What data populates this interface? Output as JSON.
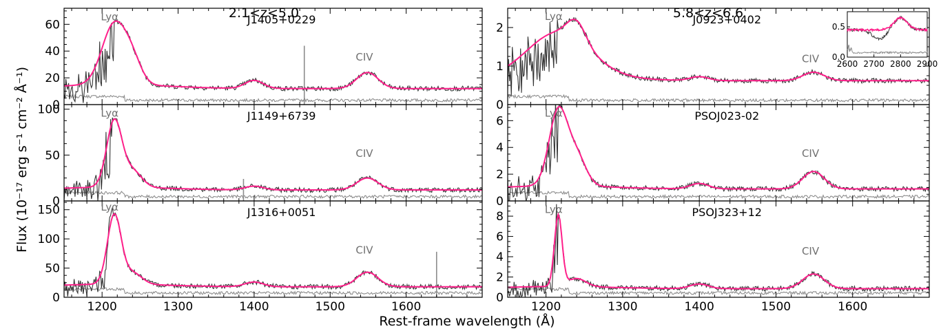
{
  "figure": {
    "ylabel": "Flux (10⁻¹⁷ erg s⁻¹ cm⁻² Å⁻¹)",
    "xlabel": "Rest-frame  wavelength (Å)",
    "columns": [
      "2.1<z<5.0",
      "5.8<z<6.6"
    ]
  },
  "colors": {
    "model": "#ff1f8a",
    "spectrum": "#333333",
    "error": "#8c8c8c",
    "line_label": "#707070"
  },
  "chart_data": [
    {
      "type": "line",
      "panel": "left-1",
      "title": "J1405+0229",
      "xlim": [
        1150,
        1700
      ],
      "ylim": [
        0,
        72
      ],
      "xticks": [
        1200,
        1300,
        1400,
        1500,
        1600
      ],
      "yticks": [
        0,
        20,
        40,
        60
      ],
      "labels": [
        {
          "text": "Lyα",
          "x": 1210,
          "y": 63
        },
        {
          "text": "CIV",
          "x": 1545,
          "y": 33
        }
      ],
      "model_shape": {
        "cont": 12,
        "lya": 45,
        "lya_w": 16,
        "nv": 15,
        "civ": 12,
        "siiv": 6
      },
      "spikes": [
        {
          "x": 1466,
          "y": 44
        }
      ]
    },
    {
      "type": "line",
      "panel": "left-2",
      "title": "J1149+6739",
      "xlim": [
        1150,
        1700
      ],
      "ylim": [
        0,
        105
      ],
      "xticks": [
        1200,
        1300,
        1400,
        1500,
        1600
      ],
      "yticks": [
        0,
        50,
        100
      ],
      "labels": [
        {
          "text": "Lyα",
          "x": 1210,
          "y": 92
        },
        {
          "text": "CIV",
          "x": 1545,
          "y": 48
        }
      ],
      "model_shape": {
        "cont": 12,
        "lya": 72,
        "lya_w": 10,
        "nv": 18,
        "civ": 13,
        "siiv": 4
      },
      "spikes": [
        {
          "x": 1386,
          "y": 24
        }
      ]
    },
    {
      "type": "line",
      "panel": "left-3",
      "title": "J1316+0051",
      "xlim": [
        1150,
        1700
      ],
      "ylim": [
        0,
        165
      ],
      "xticks": [
        1200,
        1300,
        1400,
        1500,
        1600
      ],
      "yticks": [
        0,
        50,
        100,
        150
      ],
      "labels": [
        {
          "text": "Lyα",
          "x": 1210,
          "y": 150
        },
        {
          "text": "CIV",
          "x": 1545,
          "y": 75
        }
      ],
      "model_shape": {
        "cont": 18,
        "lya": 118,
        "lya_w": 9,
        "nv": 20,
        "civ": 25,
        "siiv": 8
      },
      "spikes": [
        {
          "x": 1640,
          "y": 78
        }
      ]
    },
    {
      "type": "line",
      "panel": "right-1",
      "title": "J0923+0402",
      "xlim": [
        1150,
        1700
      ],
      "ylim": [
        0,
        2.5
      ],
      "xticks": [
        1200,
        1300,
        1400,
        1500,
        1600
      ],
      "yticks": [
        0,
        1,
        2
      ],
      "labels": [
        {
          "text": "Lyα",
          "x": 1210,
          "y": 2.2
        },
        {
          "text": "CIV",
          "x": 1545,
          "y": 1.1
        }
      ],
      "model_shape": {
        "cont": 0.62,
        "lya": 1.1,
        "lya_w": 40,
        "nv": 0.5,
        "civ": 0.22,
        "siiv": 0.1
      },
      "spikes": [],
      "inset": {
        "xlim": [
          2600,
          2900
        ],
        "ylim": [
          0,
          0.75
        ],
        "xticks": [
          2600,
          2700,
          2800,
          2900
        ],
        "yticks": [
          0.0,
          0.5
        ]
      }
    },
    {
      "type": "line",
      "panel": "right-2",
      "title": "PSOJ023-02",
      "xlim": [
        1150,
        1700
      ],
      "ylim": [
        0,
        7.2
      ],
      "xticks": [
        1200,
        1300,
        1400,
        1500,
        1600
      ],
      "yticks": [
        0,
        2,
        4,
        6
      ],
      "labels": [
        {
          "text": "Lyα",
          "x": 1210,
          "y": 6.3
        },
        {
          "text": "CIV",
          "x": 1545,
          "y": 3.3
        }
      ],
      "model_shape": {
        "cont": 0.9,
        "lya": 5.6,
        "lya_w": 12,
        "nv": 2.2,
        "civ": 1.3,
        "siiv": 0.4
      },
      "spikes": []
    },
    {
      "type": "line",
      "panel": "right-3",
      "title": "PSOJ323+12",
      "xlim": [
        1150,
        1700
      ],
      "ylim": [
        0,
        9.5
      ],
      "xticks": [
        1200,
        1300,
        1400,
        1500,
        1600
      ],
      "yticks": [
        0,
        2,
        4,
        6,
        8
      ],
      "labels": [
        {
          "text": "Lyα",
          "x": 1210,
          "y": 8.3
        },
        {
          "text": "CIV",
          "x": 1545,
          "y": 4.2
        }
      ],
      "model_shape": {
        "cont": 0.85,
        "lya": 7.0,
        "lya_w": 5,
        "nv": 0.8,
        "civ": 1.45,
        "siiv": 0.45
      },
      "spikes": []
    }
  ]
}
